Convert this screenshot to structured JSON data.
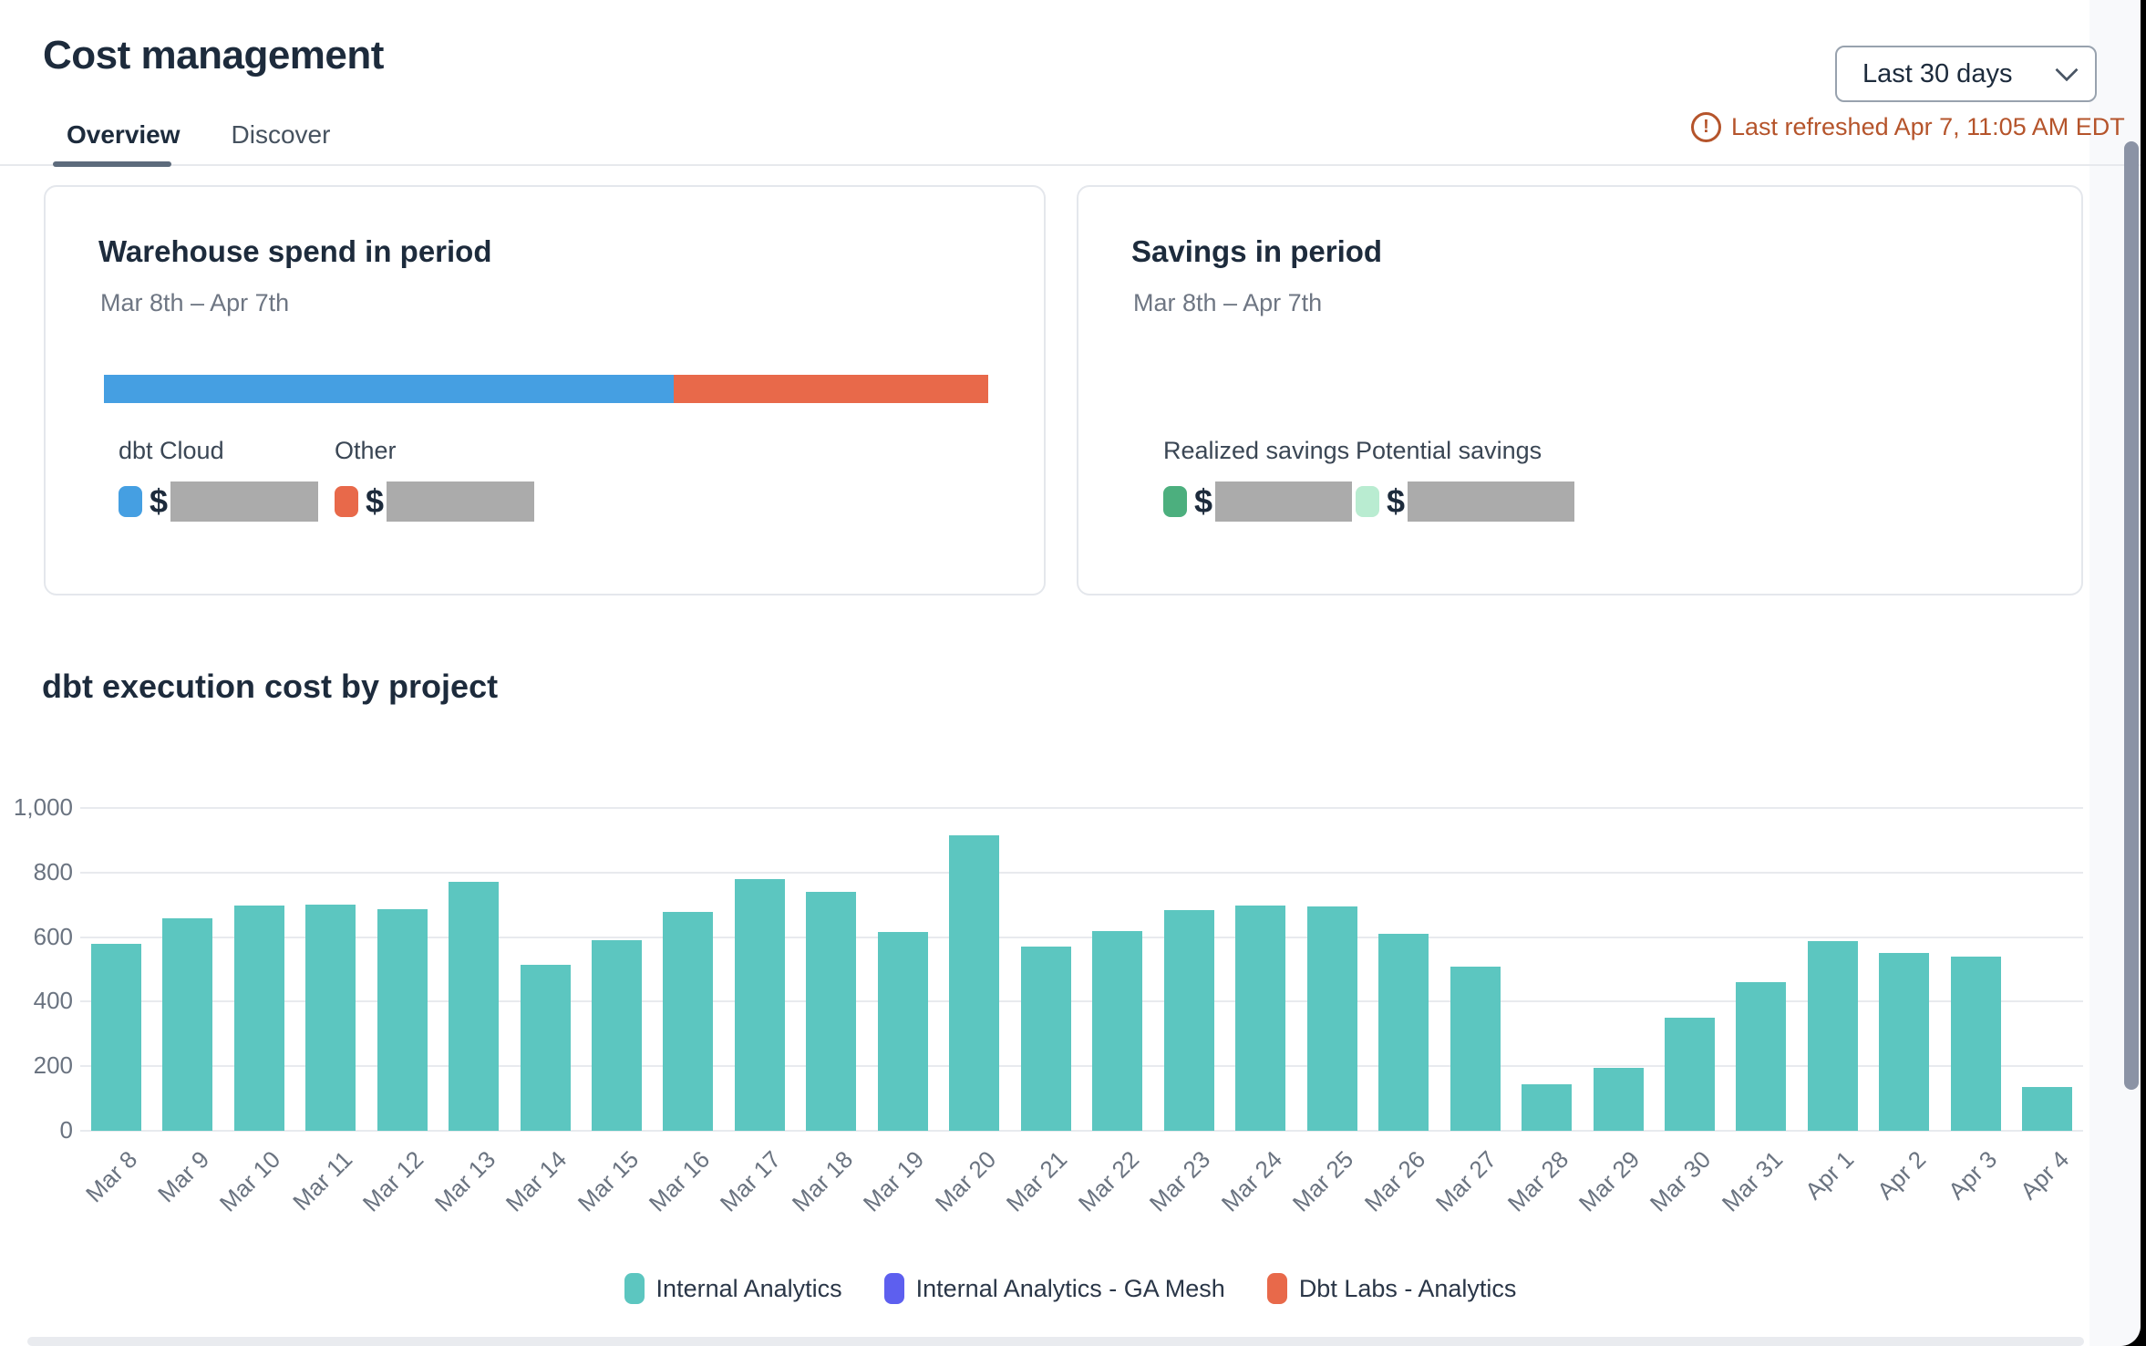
{
  "header": {
    "title": "Cost management",
    "period_selector": {
      "value": "Last 30 days"
    },
    "refresh_notice": "Last refreshed Apr 7, 11:05 AM EDT",
    "refresh_icon": "alert-circle-icon"
  },
  "tabs": [
    {
      "label": "Overview",
      "active": true
    },
    {
      "label": "Discover",
      "active": false
    }
  ],
  "warehouse_card": {
    "title": "Warehouse spend in period",
    "period": "Mar 8th – Apr 7th",
    "bar_segments": [
      {
        "label": "dbt Cloud",
        "color": "#459fe2",
        "width": "64.4%"
      },
      {
        "label": "Other",
        "color": "#e8694a",
        "width": "35.6%"
      }
    ],
    "legend": [
      {
        "label": "dbt Cloud",
        "color": "#459fe2",
        "value_prefix": "$",
        "value_redacted": true
      },
      {
        "label": "Other",
        "color": "#e8694a",
        "value_prefix": "$",
        "value_redacted": true
      }
    ]
  },
  "savings_card": {
    "title": "Savings in period",
    "period": "Mar 8th – Apr 7th",
    "legend": [
      {
        "label": "Realized savings",
        "color": "#4caf7e",
        "value_prefix": "$",
        "value_redacted": true
      },
      {
        "label": "Potential savings",
        "color": "#b9ecd1",
        "value_prefix": "$",
        "value_redacted": true
      }
    ]
  },
  "chart_data": {
    "type": "bar",
    "title": "dbt execution cost by project",
    "categories": [
      "Mar 8",
      "Mar 9",
      "Mar 10",
      "Mar 11",
      "Mar 12",
      "Mar 13",
      "Mar 14",
      "Mar 15",
      "Mar 16",
      "Mar 17",
      "Mar 18",
      "Mar 19",
      "Mar 20",
      "Mar 21",
      "Mar 22",
      "Mar 23",
      "Mar 24",
      "Mar 25",
      "Mar 26",
      "Mar 27",
      "Mar 28",
      "Mar 29",
      "Mar 30",
      "Mar 31",
      "Apr 1",
      "Apr 2",
      "Apr 3",
      "Apr 4"
    ],
    "series": [
      {
        "name": "Internal Analytics",
        "color": "#5cc6c0",
        "values": [
          578,
          658,
          697,
          700,
          686,
          772,
          515,
          590,
          678,
          780,
          740,
          615,
          915,
          570,
          620,
          685,
          698,
          695,
          610,
          508,
          143,
          196,
          350,
          461,
          588,
          550,
          541,
          135
        ]
      }
    ],
    "legend": [
      {
        "label": "Internal Analytics",
        "color": "#5cc6c0"
      },
      {
        "label": "Internal Analytics - GA Mesh",
        "color": "#5d5fef"
      },
      {
        "label": "Dbt Labs - Analytics",
        "color": "#e8694a"
      }
    ],
    "xlabel": "",
    "ylabel": "",
    "ylim": [
      0,
      1000
    ],
    "yticks": [
      0,
      200,
      400,
      600,
      800,
      1000
    ],
    "grid": true,
    "legend_position": "bottom"
  },
  "colors": {
    "redacted_box": "#ababab",
    "refresh_text": "#b5542b",
    "accent_teal": "#5cc6c0",
    "accent_blue": "#459fe2",
    "accent_orange": "#e8694a",
    "accent_green": "#4caf7e",
    "accent_mint": "#b9ecd1",
    "accent_indigo": "#5d5fef"
  }
}
